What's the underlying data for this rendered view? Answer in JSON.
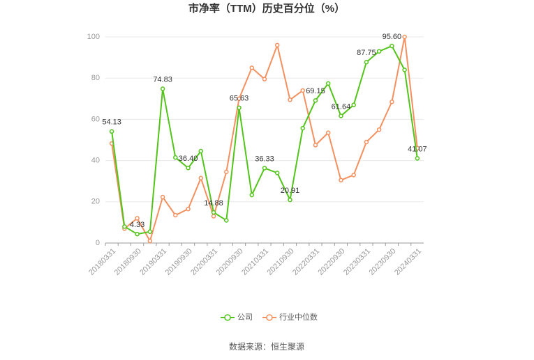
{
  "chart_data": {
    "type": "line",
    "title": "市净率（TTM）历史百分位（%）",
    "source": "数据来源：恒生聚源",
    "categories": [
      "20180331",
      null,
      "20180930",
      null,
      "20190331",
      null,
      "20190930",
      null,
      "20200331",
      null,
      "20200930",
      null,
      "20210331",
      null,
      "20210930",
      null,
      "20220331",
      null,
      "20220930",
      null,
      "20230331",
      null,
      "20230930",
      null,
      "20240331"
    ],
    "series": [
      {
        "name": "公司",
        "color": "#52c41a",
        "values": [
          54.13,
          8,
          4.33,
          5.5,
          74.83,
          41.5,
          36.4,
          44.6,
          14.88,
          11,
          65.63,
          23.3,
          36.33,
          34,
          20.91,
          55.7,
          69.15,
          77.4,
          61.64,
          67,
          87.75,
          93,
          95.6,
          84,
          41.07
        ],
        "value_labels": [
          "54.13",
          null,
          "4.33",
          null,
          "74.83",
          null,
          "36.40",
          null,
          "14.88",
          null,
          "65.63",
          null,
          "36.33",
          null,
          "20.91",
          null,
          "69.15",
          null,
          "61.64",
          null,
          "87.75",
          null,
          "95.60",
          null,
          "41.07"
        ]
      },
      {
        "name": "行业中位数",
        "color": "#f4905f",
        "values": [
          48.3,
          7,
          12,
          1,
          22.3,
          13.5,
          16.5,
          31.5,
          13,
          34.5,
          70,
          85,
          79.5,
          96,
          69.5,
          74,
          47.5,
          53.5,
          30.5,
          33,
          49,
          55,
          68.5,
          100,
          46
        ]
      }
    ],
    "ylim": [
      0,
      100
    ],
    "yticks": [
      0,
      20,
      40,
      60,
      80,
      100
    ],
    "grid": true
  }
}
